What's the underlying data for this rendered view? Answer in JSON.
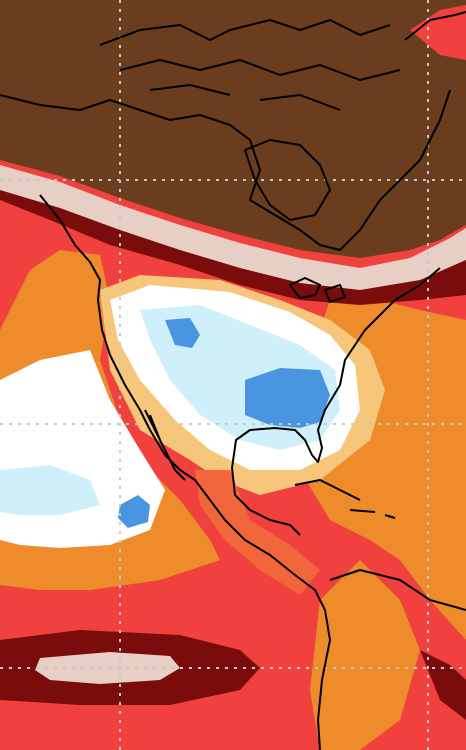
{
  "map": {
    "palette": {
      "land_mask": "#6b3d1f",
      "coast_band_light": "#e8cfc6",
      "deep_red": "#7a0c0c",
      "red": "#f0413e",
      "red_orange": "#f2663b",
      "orange": "#ee8c2c",
      "light_orange": "#f6c77a",
      "white": "#ffffff",
      "light_blue": "#cfeffb",
      "blue": "#4a95e0",
      "coastline": "#000000",
      "graticule": "#c8c8c8"
    },
    "graticule": {
      "style": "dotted"
    }
  }
}
